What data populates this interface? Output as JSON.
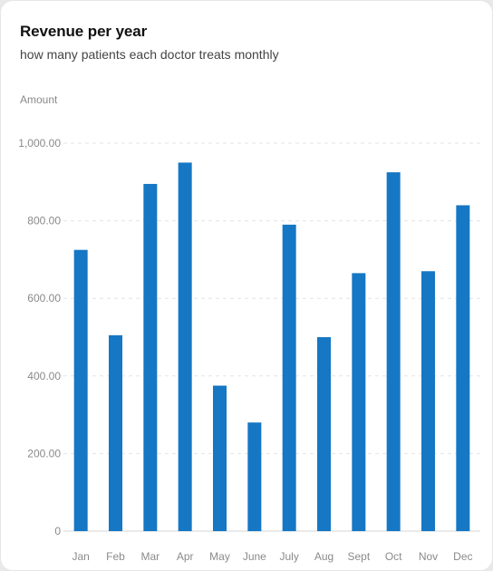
{
  "chart_data": {
    "type": "bar",
    "title": "Revenue per year",
    "subtitle": "how many patients each doctor treats monthly",
    "ylabel": "Amount",
    "xlabel": "",
    "ylim": [
      0,
      1000
    ],
    "yticks": [
      0,
      200,
      400,
      600,
      800,
      1000
    ],
    "ytick_labels": [
      "0",
      "200.00",
      "400.00",
      "600.00",
      "800.00",
      "1,000.00"
    ],
    "grid": true,
    "bar_color": "#1677c4",
    "categories": [
      "Jan",
      "Feb",
      "Mar",
      "Apr",
      "May",
      "June",
      "July",
      "Aug",
      "Sept",
      "Oct",
      "Nov",
      "Dec"
    ],
    "values": [
      725,
      505,
      895,
      950,
      375,
      280,
      790,
      500,
      665,
      925,
      670,
      840
    ]
  }
}
